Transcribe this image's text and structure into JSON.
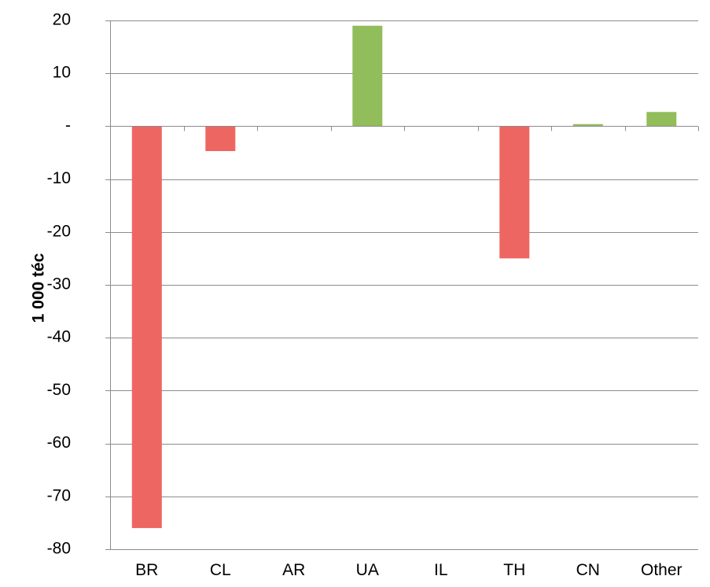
{
  "chart_data": {
    "type": "bar",
    "title": "",
    "xlabel": "",
    "ylabel": "1 000 téc",
    "categories": [
      "BR",
      "CL",
      "AR",
      "UA",
      "IL",
      "TH",
      "CN",
      "Other"
    ],
    "values": [
      -76,
      -4.7,
      0,
      19,
      0,
      -25,
      0.4,
      2.7
    ],
    "ylim": [
      -80,
      20
    ],
    "yticks": [
      20,
      10,
      0,
      -10,
      -20,
      -30,
      -40,
      -50,
      -60,
      -70,
      -80
    ],
    "ytick_labels": [
      "20",
      "10",
      "-",
      "-10",
      "-20",
      "-30",
      "-40",
      "-50",
      "-60",
      "-70",
      "-80"
    ],
    "grid": true,
    "legend": "none",
    "colors": {
      "negative": "#EE6661",
      "positive": "#92BD5B",
      "grid": "#8C8C8C",
      "axis": "#8C8C8C"
    }
  }
}
